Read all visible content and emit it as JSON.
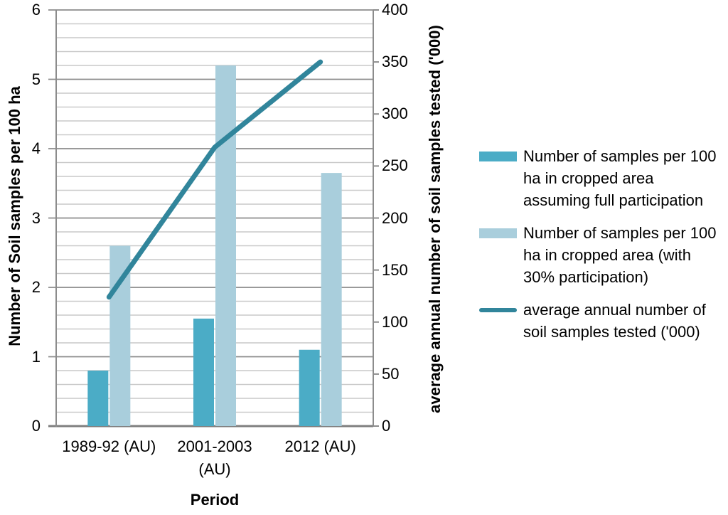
{
  "chart_data": {
    "type": "bar",
    "subtype": "grouped-bar-with-line-combo",
    "categories": [
      "1989-92 (AU)",
      "2001-2003 (AU)",
      "2012 (AU)"
    ],
    "series": [
      {
        "name": "Number of samples per 100 ha in cropped area assuming full participation",
        "type": "bar",
        "axis": "left",
        "color": "#4BACC6",
        "values": [
          0.8,
          1.55,
          1.1
        ]
      },
      {
        "name": "Number of samples per 100 ha in cropped area (with 30% participation)",
        "type": "bar",
        "axis": "left",
        "color": "#A9CEDC",
        "values": [
          2.6,
          5.2,
          3.65
        ]
      },
      {
        "name": "average annual number of soil samples tested ('000)",
        "type": "line",
        "axis": "right",
        "color": "#31859B",
        "values": [
          124,
          268,
          350
        ]
      }
    ],
    "left_axis": {
      "title": "Number of Soil samples per 100 ha",
      "min": 0,
      "max": 6,
      "major_step": 1,
      "minor_step": 0.2,
      "tick_labels": [
        "0",
        "1",
        "2",
        "3",
        "4",
        "5",
        "6"
      ]
    },
    "right_axis": {
      "title": "average annual number of soil samples tested ('000)",
      "min": 0,
      "max": 400,
      "step": 50,
      "tick_labels": [
        "0",
        "50",
        "100",
        "150",
        "200",
        "250",
        "300",
        "350",
        "400"
      ]
    },
    "x_axis": {
      "title": "Period"
    },
    "grid": {
      "horizontal_major": true,
      "horizontal_minor": true
    },
    "legend_position": "right",
    "colors": {
      "bar_full_participation": "#4BACC6",
      "bar_30pct_participation": "#A9CEDC",
      "line_samples_tested": "#31859B",
      "major_gridline": "#8C8C8C",
      "minor_gridline": "#C9C9C9",
      "axis_line": "#7F7F7F",
      "text": "#000000"
    }
  }
}
